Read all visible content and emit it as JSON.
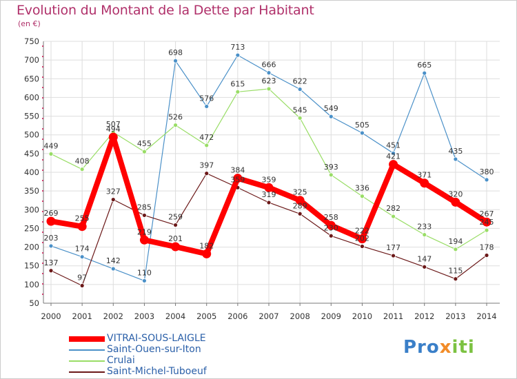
{
  "page": {
    "title": "Evolution du Montant de la Dette par Habitant",
    "subtitle": "(en €)",
    "logo": "Proxiti"
  },
  "colors": {
    "title": "#b0306a",
    "legend_text": "#2a5fa8",
    "axis": "#999999",
    "grid": "#dddddd"
  },
  "chart_data": {
    "type": "line",
    "title": "Evolution du Montant de la Dette par Habitant",
    "subtitle": "(en €)",
    "x": [
      "2000",
      "2001",
      "2002",
      "2003",
      "2004",
      "2005",
      "2006",
      "2007",
      "2008",
      "2009",
      "2010",
      "2011",
      "2012",
      "2013",
      "2014"
    ],
    "ylim": [
      50,
      750
    ],
    "yticks": [
      50,
      100,
      150,
      200,
      250,
      300,
      350,
      400,
      450,
      500,
      550,
      600,
      650,
      700,
      750
    ],
    "grid": true,
    "legend_position": "bottom-left",
    "series": [
      {
        "name": "VITRAI-SOUS-LAIGLE",
        "color": "#ff0000",
        "width": 8,
        "values": [
          269,
          255,
          494,
          219,
          201,
          182,
          384,
          359,
          325,
          258,
          222,
          421,
          371,
          320,
          267
        ]
      },
      {
        "name": "Saint-Ouen-sur-Iton",
        "color": "#4a90c8",
        "width": 1.2,
        "values": [
          203,
          174,
          142,
          110,
          698,
          576,
          713,
          666,
          622,
          549,
          505,
          451,
          665,
          435,
          380
        ]
      },
      {
        "name": "Crulai",
        "color": "#99dd66",
        "width": 1.2,
        "values": [
          449,
          408,
          507,
          455,
          526,
          472,
          615,
          623,
          545,
          393,
          336,
          282,
          233,
          194,
          245
        ]
      },
      {
        "name": "Saint-Michel-Tuboeuf",
        "color": "#6b1818",
        "width": 1.2,
        "values": [
          137,
          97,
          327,
          285,
          259,
          397,
          359,
          319,
          289,
          230,
          202,
          177,
          147,
          115,
          178
        ]
      }
    ]
  }
}
